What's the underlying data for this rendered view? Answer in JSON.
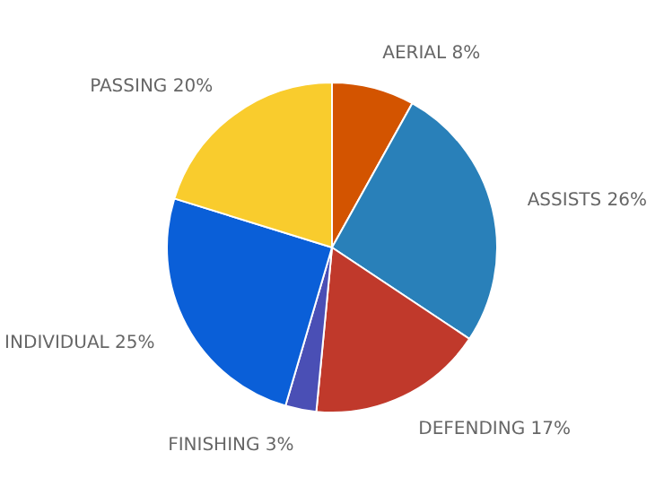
{
  "chart_data": {
    "type": "pie",
    "categories": [
      "AERIAL",
      "ASSISTS",
      "DEFENDING",
      "FINISHING",
      "INDIVIDUAL",
      "PASSING"
    ],
    "values": [
      8,
      26,
      17,
      3,
      25,
      20
    ],
    "value_labels": [
      "8%",
      "26%",
      "17%",
      "3%",
      "25%",
      "20%"
    ],
    "colors": [
      "#d35400",
      "#2980b9",
      "#c0392b",
      "#4a4fb5",
      "#0a5fd8",
      "#f9cc2d"
    ]
  }
}
